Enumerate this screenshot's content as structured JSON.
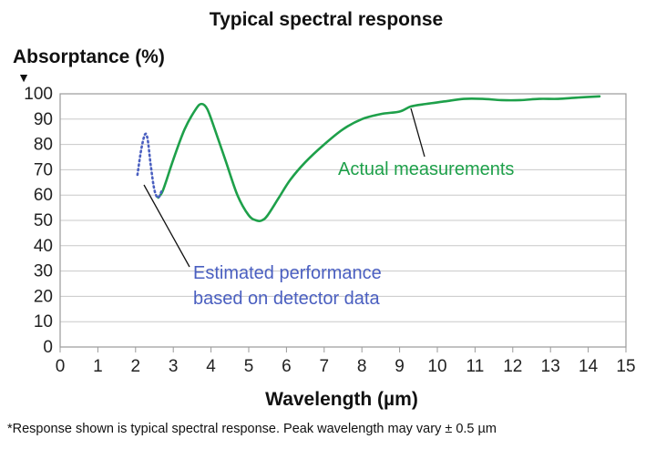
{
  "chart_data": {
    "type": "line",
    "title": "Typical spectral response",
    "xlabel": "Wavelength (µm)",
    "ylabel": "Absorptance (%)",
    "xlim": [
      0,
      15
    ],
    "ylim": [
      0,
      100
    ],
    "x_ticks": [
      "0",
      "1",
      "2",
      "3",
      "4",
      "5",
      "6",
      "7",
      "8",
      "9",
      "10",
      "11",
      "12",
      "13",
      "14",
      "15"
    ],
    "y_ticks": [
      "0",
      "10",
      "20",
      "30",
      "40",
      "50",
      "60",
      "70",
      "80",
      "90",
      "100"
    ],
    "grid": true,
    "colors": {
      "actual": "#1ea04a",
      "estimated": "#4a5fc0",
      "grid": "#c8c8c8",
      "frame": "#9a9a9a"
    },
    "series": [
      {
        "name": "Actual measurements",
        "style": "solid",
        "x": [
          2.6,
          2.7,
          2.8,
          3.0,
          3.3,
          3.6,
          3.75,
          3.9,
          4.1,
          4.4,
          4.7,
          5.0,
          5.2,
          5.35,
          5.5,
          5.8,
          6.1,
          6.5,
          7.0,
          7.5,
          8.0,
          8.5,
          9.0,
          9.3,
          9.7,
          10.2,
          10.7,
          11.2,
          11.7,
          12.2,
          12.7,
          13.2,
          13.7,
          14.3
        ],
        "y": [
          59,
          61,
          65,
          74,
          86,
          94,
          96,
          94,
          86,
          73,
          60,
          52,
          50,
          50,
          52,
          59,
          66,
          73,
          80,
          86,
          90,
          92,
          93,
          95,
          96,
          97,
          98,
          98,
          97.5,
          97.5,
          98,
          98,
          98.5,
          99
        ]
      },
      {
        "name": "Estimated performance based on detector data",
        "style": "dotted",
        "x": [
          2.05,
          2.15,
          2.25,
          2.32,
          2.4,
          2.5,
          2.6,
          2.7
        ],
        "y": [
          68,
          78,
          84,
          82,
          72,
          62,
          59,
          62
        ]
      }
    ],
    "annotations": [
      {
        "text": "Actual measurements",
        "points_to": [
          9.2,
          93
        ]
      },
      {
        "text_lines": [
          "Estimated performance",
          "based on detector data"
        ],
        "points_to": [
          2.3,
          66
        ]
      }
    ],
    "footnote": "*Response shown is typical spectral response.  Peak wavelength may vary ± 0.5 µm",
    "y_axis_marker": "▼"
  }
}
